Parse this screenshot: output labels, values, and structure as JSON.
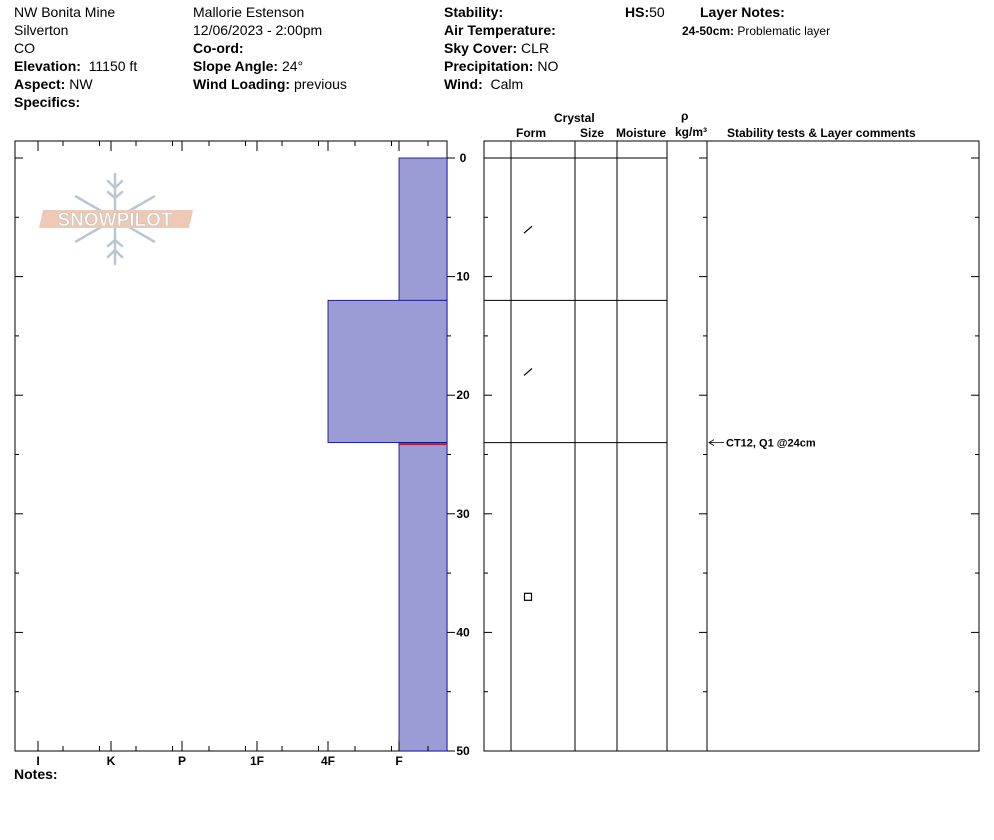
{
  "header": {
    "location": "NW Bonita Mine",
    "region": "Silverton",
    "state": "CO",
    "elevation_label": "Elevation:",
    "elevation_value": "11150 ft",
    "aspect_label": "Aspect:",
    "aspect_value": "NW",
    "specifics_label": "Specifics:",
    "observer": "Mallorie Estenson",
    "datetime": "12/06/2023 - 2:00pm",
    "coord_label": "Co-ord:",
    "slope_label": "Slope Angle:",
    "slope_value": "24°",
    "wind_loading_label": "Wind Loading:",
    "wind_loading_value": "previous",
    "stability_label": "Stability:",
    "air_temp_label": "Air Temperature:",
    "sky_label": "Sky Cover:",
    "sky_value": "CLR",
    "precip_label": "Precipitation:",
    "precip_value": "NO",
    "wind_label": "Wind:",
    "wind_value": "Calm",
    "hs_label": "HS:",
    "hs_value": "50",
    "layer_notes_label": "Layer Notes:",
    "layer_note_range": "24-50cm:",
    "layer_note_text": "Problematic layer"
  },
  "logo": {
    "text": "SNOWPILOT"
  },
  "columns": {
    "crystal": "Crystal",
    "form": "Form",
    "size": "Size",
    "moisture": "Moisture",
    "rho": "ρ",
    "density_unit": "kg/m³",
    "stability": "Stability tests & Layer comments"
  },
  "notes_label": "Notes:",
  "colors": {
    "layer_fill": "#9b9bd6",
    "layer_stroke": "#000080",
    "weak_layer": "#b0203a"
  },
  "chart_data": {
    "type": "snow-profile",
    "depth_axis": {
      "range": [
        0,
        50
      ],
      "ticks": [
        0,
        10,
        20,
        30,
        40,
        50
      ],
      "inverted": true
    },
    "hardness_axis": {
      "ticks": [
        "I",
        "K",
        "P",
        "1F",
        "4F",
        "F"
      ]
    },
    "layers": [
      {
        "top": 0,
        "bottom": 12,
        "hardness": "F",
        "form": "decomposing"
      },
      {
        "top": 12,
        "bottom": 24,
        "hardness": "4F",
        "form": "decomposing"
      },
      {
        "top": 24,
        "bottom": 50,
        "hardness": "F",
        "form": "faceted"
      }
    ],
    "weak_layer_depth": 24,
    "stability_tests": [
      {
        "depth": 24,
        "text": "CT12, Q1 @24cm"
      }
    ]
  }
}
